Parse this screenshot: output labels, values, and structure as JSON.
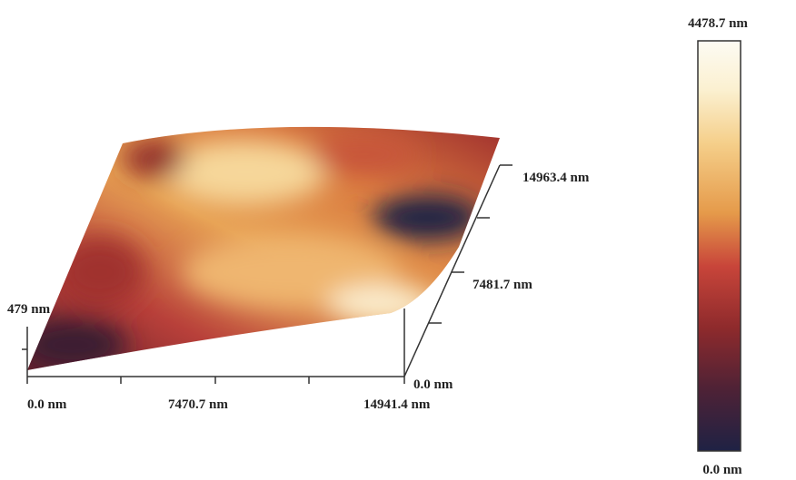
{
  "surface_axes": {
    "x_labels": [
      "0.0 nm",
      "7470.7 nm",
      "14941.4 nm"
    ],
    "y_labels": [
      "0.0 nm",
      "7481.7 nm",
      "14963.4 nm"
    ],
    "z_label": "479 nm"
  },
  "colorbar": {
    "max_label": "4478.7 nm",
    "min_label": "0.0 nm"
  }
}
